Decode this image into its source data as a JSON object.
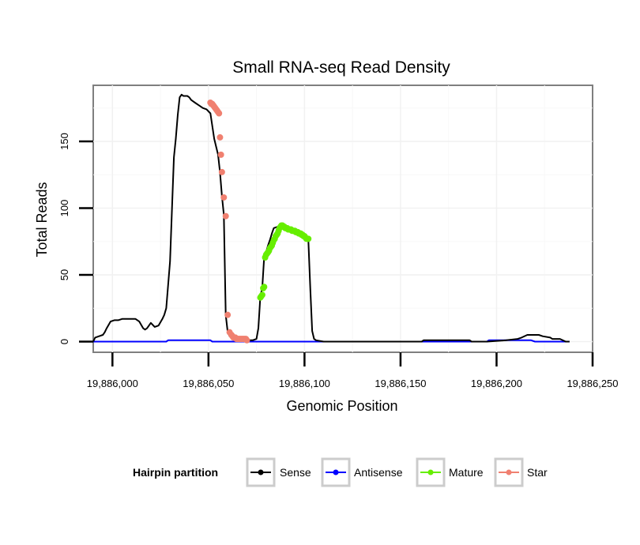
{
  "chart_data": {
    "type": "line",
    "title": "Small RNA-seq Read Density",
    "xlabel": "Genomic Position",
    "ylabel": "Total Reads",
    "xlim": [
      19885990,
      19886250
    ],
    "ylim": [
      -8,
      192
    ],
    "x_ticks": [
      19886000,
      19886050,
      19886100,
      19886150,
      19886200,
      19886250
    ],
    "x_tick_labels": [
      "19,886,000",
      "19,886,050",
      "19,886,100",
      "19,886,150",
      "19,886,200",
      "19,886,250"
    ],
    "y_ticks": [
      0,
      50,
      100,
      150
    ],
    "y_tick_labels": [
      "0",
      "50",
      "100",
      "150"
    ],
    "grid": true,
    "legend": {
      "title": "Hairpin partition",
      "position": "bottom"
    },
    "series": [
      {
        "name": "Sense",
        "color": "#000000",
        "mode": "line",
        "x": [
          19885990,
          19885991,
          19885993,
          19885995,
          19885996,
          19885997,
          19885999,
          19886001,
          19886003,
          19886005,
          19886006,
          19886008,
          19886010,
          19886012,
          19886014,
          19886016,
          19886017,
          19886018,
          19886020,
          19886022,
          19886024,
          19886026,
          19886027,
          19886028,
          19886030,
          19886031,
          19886032,
          19886033,
          19886034,
          19886035,
          19886036,
          19886037,
          19886038,
          19886039,
          19886040,
          19886041,
          19886043,
          19886045,
          19886047,
          19886049,
          19886051,
          19886053,
          19886055,
          19886056,
          19886057,
          19886058,
          19886059,
          19886060,
          19886061,
          19886062,
          19886063,
          19886065,
          19886067,
          19886069,
          19886071,
          19886073,
          19886075,
          19886076,
          19886077,
          19886078,
          19886079,
          19886080,
          19886081,
          19886082,
          19886083,
          19886084,
          19886086,
          19886088,
          19886090,
          19886091,
          19886092,
          19886094,
          19886096,
          19886098,
          19886100,
          19886102,
          19886103,
          19886104,
          19886105,
          19886106,
          19886110,
          19886120,
          19886140,
          19886161,
          19886162,
          19886186,
          19886187,
          19886195,
          19886205,
          19886211,
          19886213,
          19886216,
          19886222,
          19886224,
          19886228,
          19886229,
          19886233,
          19886236,
          19886238
        ],
        "y": [
          0,
          3,
          4,
          5,
          7,
          10,
          15,
          16,
          16,
          17,
          17,
          17,
          17,
          17,
          15,
          10,
          9,
          10,
          14,
          11,
          12,
          17,
          20,
          25,
          60,
          100,
          138,
          152,
          170,
          183,
          185,
          184,
          184,
          184,
          183,
          181,
          179,
          177,
          175,
          174,
          171,
          152,
          140,
          127,
          109,
          95,
          20,
          7,
          4,
          3,
          2,
          2,
          1,
          1,
          1,
          1,
          2,
          10,
          34,
          40,
          63,
          67,
          72,
          76,
          81,
          85,
          86,
          85,
          85,
          84,
          84,
          83,
          82,
          81,
          79,
          77,
          40,
          8,
          2,
          1,
          0,
          0,
          0,
          0,
          1,
          1,
          0,
          0,
          1,
          2,
          3,
          5,
          5,
          4,
          3,
          2,
          2,
          0,
          0
        ]
      },
      {
        "name": "Antisense",
        "color": "#0000ff",
        "mode": "line",
        "x": [
          19885990,
          19886028,
          19886029,
          19886051,
          19886052,
          19886105,
          19886106,
          19886161,
          19886162,
          19886186,
          19886187,
          19886195,
          19886196,
          19886212,
          19886213,
          19886218,
          19886220,
          19886238
        ],
        "y": [
          0,
          0,
          1,
          1,
          0,
          0,
          0,
          0,
          0,
          0,
          0,
          0,
          1,
          1,
          1,
          1,
          0,
          0
        ]
      },
      {
        "name": "Mature",
        "color": "#66ee00",
        "mode": "points",
        "x": [
          19886077,
          19886077.5,
          19886078,
          19886078.5,
          19886079,
          19886079.5,
          19886080,
          19886080.5,
          19886081,
          19886081.5,
          19886082,
          19886082.5,
          19886083,
          19886083.5,
          19886084,
          19886084.5,
          19886085,
          19886085.5,
          19886086,
          19886086.5,
          19886087,
          19886087.5,
          19886088,
          19886088.5,
          19886089,
          19886089.5,
          19886090,
          19886090.5,
          19886091,
          19886091.5,
          19886092,
          19886092.5,
          19886093,
          19886093.5,
          19886094,
          19886094.5,
          19886095,
          19886095.5,
          19886096,
          19886096.5,
          19886097,
          19886097.5,
          19886098,
          19886098.5,
          19886099,
          19886099.5,
          19886100,
          19886100.5,
          19886101,
          19886101.5,
          19886102
        ],
        "y": [
          33,
          34,
          35,
          40,
          41,
          63,
          65,
          66,
          67,
          68,
          70,
          71,
          72,
          74,
          76,
          77,
          79,
          80,
          81,
          83,
          85,
          86,
          87,
          87,
          86,
          86,
          85,
          85,
          85,
          84,
          84,
          84,
          84,
          83,
          83,
          83,
          83,
          82,
          82,
          82,
          81,
          81,
          81,
          80,
          80,
          79,
          79,
          78,
          77,
          77,
          77
        ]
      },
      {
        "name": "Star",
        "color": "#f08070",
        "mode": "points",
        "x": [
          19886051,
          19886051.5,
          19886052,
          19886052.5,
          19886053,
          19886053.5,
          19886054,
          19886054.5,
          19886055,
          19886055.5,
          19886056,
          19886056.5,
          19886057,
          19886058,
          19886059,
          19886060,
          19886061,
          19886062,
          19886062.5,
          19886063,
          19886063.5,
          19886064,
          19886064.5,
          19886065,
          19886065.5,
          19886066,
          19886066.5,
          19886067,
          19886067.5,
          19886068,
          19886068.5,
          19886069,
          19886069.5,
          19886070
        ],
        "y": [
          179,
          178,
          178,
          177,
          176,
          175,
          174,
          173,
          172,
          171,
          153,
          140,
          127,
          108,
          94,
          20,
          7,
          5,
          4,
          3,
          3,
          3,
          2,
          2,
          2,
          2,
          2,
          2,
          2,
          2,
          2,
          2,
          2,
          1
        ]
      }
    ]
  }
}
